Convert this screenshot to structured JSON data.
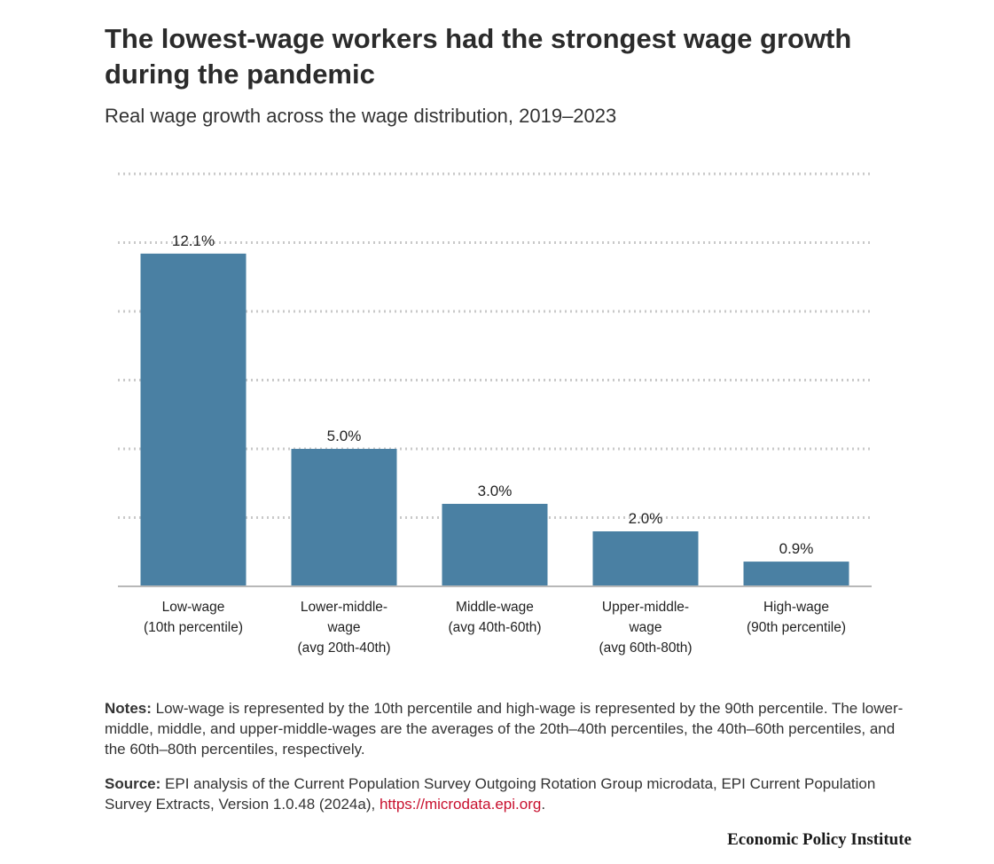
{
  "header": {
    "title": "The lowest-wage workers had the strongest wage growth during the pandemic",
    "subtitle": "Real wage growth across the wage distribution, 2019–2023"
  },
  "chart_data": {
    "type": "bar",
    "categories": [
      [
        "Low-wage",
        "(10th percentile)"
      ],
      [
        "Lower-middle-",
        "wage",
        "(avg 20th-40th)"
      ],
      [
        "Middle-wage",
        "(avg 40th-60th)"
      ],
      [
        "Upper-middle-",
        "wage",
        "(avg 60th-80th)"
      ],
      [
        "High-wage",
        "(90th percentile)"
      ]
    ],
    "values": [
      12.1,
      5.0,
      3.0,
      2.0,
      0.9
    ],
    "value_labels": [
      "12.1%",
      "5.0%",
      "3.0%",
      "2.0%",
      "0.9%"
    ],
    "ylim": [
      0,
      15
    ],
    "gridlines": [
      2.5,
      5,
      7.5,
      10,
      12.5,
      15
    ],
    "grid": true,
    "bar_color": "#4a80a3"
  },
  "notes": {
    "label": "Notes:",
    "text": " Low-wage is represented by the 10th percentile and high-wage is represented by the 90th percentile. The lower-middle, middle, and upper-middle-wages are the averages of the 20th–40th percentiles, the 40th–60th percentiles, and the 60th–80th percentiles, respectively."
  },
  "source": {
    "label": "Source:",
    "text": " EPI analysis of the Current Population Survey Outgoing Rotation Group microdata, EPI Current Population Survey Extracts, Version 1.0.48 (2024a), ",
    "link": "https://microdata.epi.org",
    "end": "."
  },
  "footer": {
    "brand": "Economic Policy Institute"
  }
}
